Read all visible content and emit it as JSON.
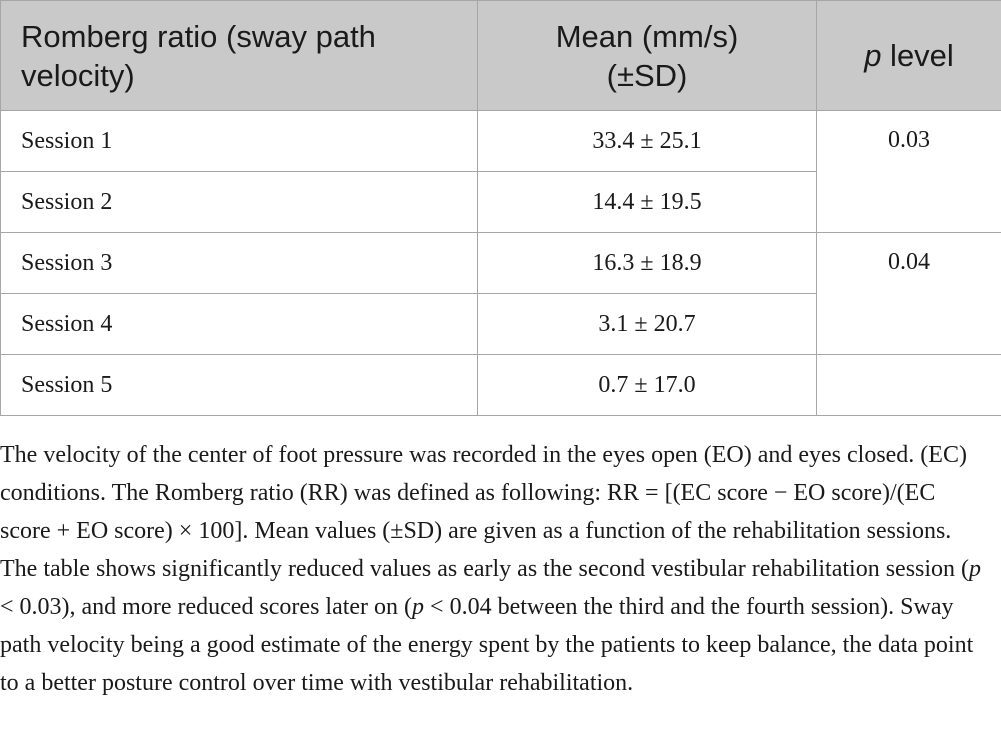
{
  "table": {
    "headers": {
      "col1": "Romberg ratio (sway path velocity)",
      "col2_line1": "Mean (mm/s)",
      "col2_line2": "(±SD)",
      "col3_italic": "p",
      "col3_rest": " level"
    },
    "rows": [
      {
        "session": "Session 1",
        "mean": "33.4 ± 25.1"
      },
      {
        "session": "Session 2",
        "mean": "14.4 ± 19.5"
      },
      {
        "session": "Session 3",
        "mean": "16.3 ± 18.9"
      },
      {
        "session": "Session 4",
        "mean": "3.1 ± 20.7"
      },
      {
        "session": "Session 5",
        "mean": "0.7 ± 17.0"
      }
    ],
    "p_levels": [
      "0.03",
      "0.04",
      ""
    ]
  },
  "caption": {
    "part1": "The velocity of the center of foot pressure was recorded in the eyes open (EO) and eyes closed. (EC) conditions. The Romberg ratio (RR) was defined as following: RR = [(EC score − EO score)/(EC score + EO score) × 100]. Mean values (±SD) are given as a function of the rehabilitation sessions. The table shows significantly reduced values as early as the second vestibular rehabilitation session (",
    "p1": "p",
    "part2": " < 0.03), and more reduced scores later on (",
    "p2": "p",
    "part3": " < 0.04 between the third and the fourth session). Sway path velocity being a good estimate of the energy spent by the patients to keep balance, the data point to a better posture control over time with vestibular rehabilitation."
  }
}
